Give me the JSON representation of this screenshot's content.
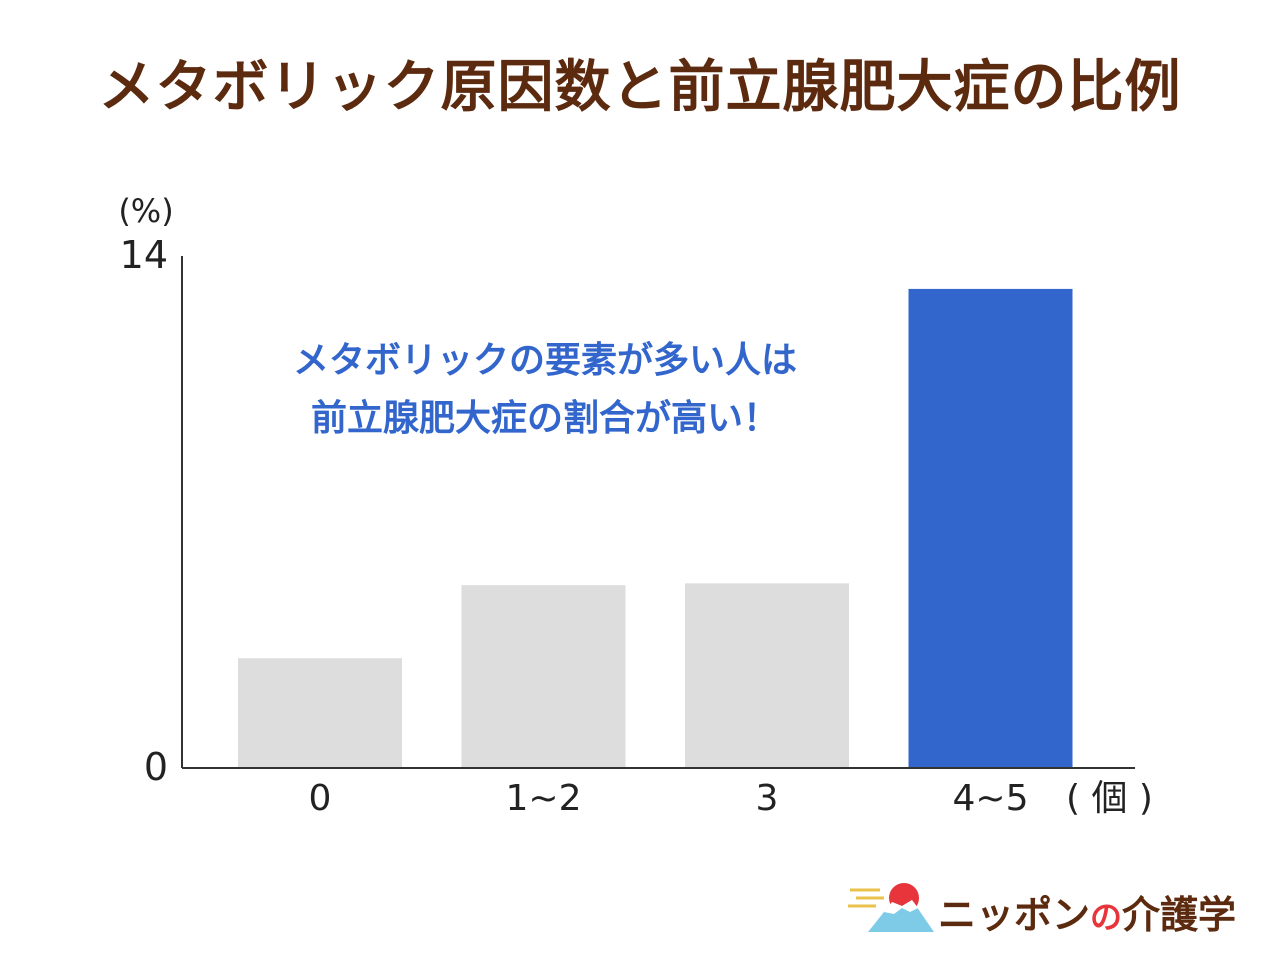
{
  "title": "メタボリック原因数と前立腺肥大症の比例",
  "callout": {
    "line1": "メタボリックの要素が多い人は",
    "line2": "前立腺肥大症の割合が高い！"
  },
  "logo": {
    "text_a": "ニッポン",
    "text_no": "の",
    "text_b": "介護学"
  },
  "chart_data": {
    "type": "bar",
    "title": "メタボリック原因数と前立腺肥大症の比例",
    "ylabel": "(%)",
    "xlabel": "( 個 )",
    "categories": [
      "0",
      "1~2",
      "3",
      "4~5"
    ],
    "values": [
      3.0,
      5.0,
      5.05,
      13.1
    ],
    "ylim": [
      0,
      14
    ],
    "yticks": [
      "0",
      "14"
    ],
    "colors": [
      "#dcdddc",
      "#dcdddc",
      "#dcdddc",
      "#3366cc"
    ],
    "grid": false,
    "legend": "none"
  }
}
